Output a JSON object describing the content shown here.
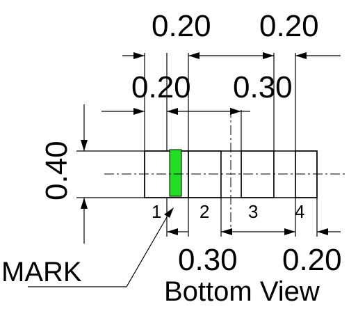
{
  "dimensions": {
    "top_left_pitch": "0.20",
    "top_right_width": "0.20",
    "mid_left_width": "0.20",
    "mid_right_pitch": "0.30",
    "height": "0.40",
    "bottom_left_pitch": "0.30",
    "bottom_right_pitch": "0.20"
  },
  "pins": [
    "1",
    "2",
    "3",
    "4"
  ],
  "mark_label": "MARK",
  "caption": "Bottom View",
  "colors": {
    "mark": "#22dd22",
    "line": "#000000",
    "background": "#ffffff"
  }
}
